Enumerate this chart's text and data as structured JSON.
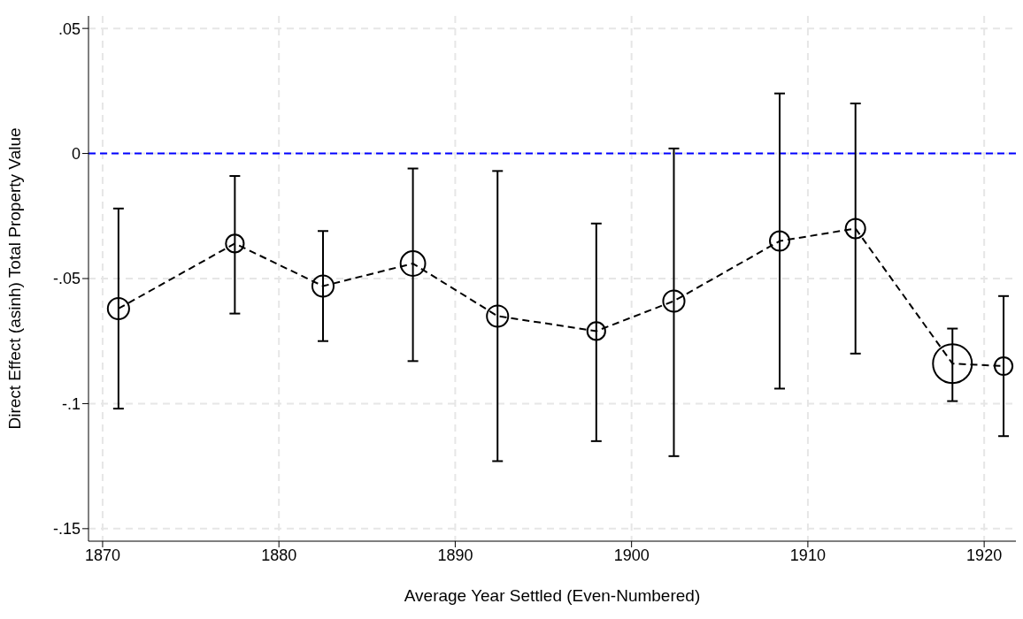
{
  "chart_data": {
    "type": "bubble",
    "xlabel": "Average Year Settled (Even-Numbered)",
    "ylabel": "Direct Effect (asinh) Total Property Value",
    "x": [
      1870.9,
      1877.5,
      1882.5,
      1887.6,
      1892.4,
      1898.0,
      1902.4,
      1908.4,
      1912.7,
      1918.2,
      1921.1
    ],
    "series": [
      {
        "type": "line",
        "color": "#000000",
        "line_style": "dashed",
        "marker": "none",
        "values": [
          -0.062,
          -0.036,
          -0.053,
          -0.044,
          -0.065,
          -0.071,
          -0.059,
          -0.035,
          -0.03,
          -0.084,
          -0.085
        ]
      },
      {
        "color": "#000000",
        "marker": "circle",
        "values": [
          -0.062,
          -0.036,
          -0.053,
          -0.044,
          -0.065,
          -0.071,
          -0.059,
          -0.035,
          -0.03,
          -0.084,
          -0.085
        ],
        "sizes": [
          0.3,
          0.21,
          0.3,
          0.4,
          0.3,
          0.21,
          0.3,
          0.25,
          0.25,
          1,
          0.21
        ],
        "errors": [
          [
            -0.102,
            -0.022
          ],
          [
            -0.064,
            -0.009
          ],
          [
            -0.075,
            -0.031
          ],
          [
            -0.083,
            -0.006
          ],
          [
            -0.123,
            -0.007
          ],
          [
            -0.115,
            -0.028
          ],
          [
            -0.121,
            0.002
          ],
          [
            -0.094,
            0.024
          ],
          [
            -0.08,
            0.02
          ],
          [
            -0.099,
            -0.07
          ],
          [
            -0.113,
            -0.057
          ]
        ]
      }
    ],
    "xlim": [
      1869.2,
      1921.8
    ],
    "xticks": [
      1870,
      1880,
      1890,
      1900,
      1910,
      1920
    ],
    "ylim": [
      -0.155,
      0.055
    ],
    "yticks": [
      {
        "value": -0.15,
        "label": "-.15"
      },
      {
        "value": -0.1,
        "label": "-.1"
      },
      {
        "value": -0.05,
        "label": "-.05"
      },
      {
        "value": 0,
        "label": "0"
      },
      {
        "value": 0.05,
        "label": ".05"
      }
    ],
    "ref_lines": [
      {
        "axis": "y",
        "value": 0,
        "color": "#0000ff",
        "line_style": "dashed"
      }
    ],
    "grid": true
  }
}
